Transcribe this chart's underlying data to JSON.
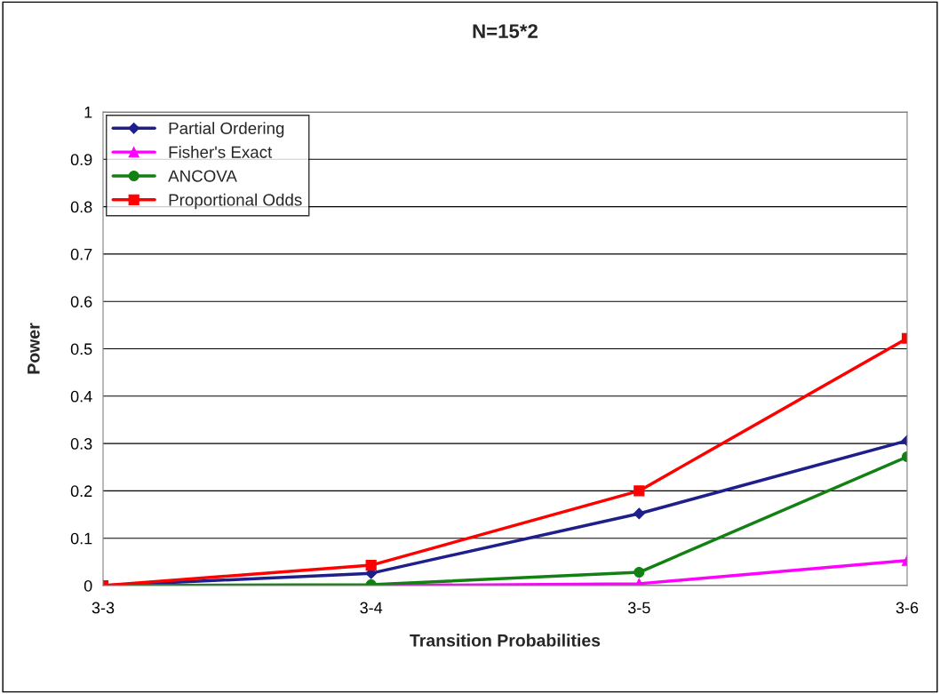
{
  "chart_data": {
    "type": "line",
    "title": "N=15*2",
    "xlabel": "Transition Probabilities",
    "ylabel": "Power",
    "categories": [
      "3-3",
      "3-4",
      "3-5",
      "3-6"
    ],
    "series": [
      {
        "name": "Partial Ordering",
        "color": "#1f1f8c",
        "marker": "diamond",
        "values": [
          0,
          0.026,
          0.152,
          0.306
        ]
      },
      {
        "name": "Fisher's Exact",
        "color": "#ff00ff",
        "marker": "triangle",
        "values": [
          0,
          0,
          0.004,
          0.053
        ]
      },
      {
        "name": "ANCOVA",
        "color": "#128012",
        "marker": "circle",
        "values": [
          0,
          0.002,
          0.028,
          0.272
        ]
      },
      {
        "name": "Proportional Odds",
        "color": "#ff0000",
        "marker": "square",
        "values": [
          0,
          0.043,
          0.2,
          0.522
        ]
      }
    ],
    "ylim": [
      0,
      1
    ],
    "yticks": [
      0,
      0.1,
      0.2,
      0.3,
      0.4,
      0.5,
      0.6,
      0.7,
      0.8,
      0.9,
      1
    ],
    "grid": "y",
    "legend": "top left"
  }
}
